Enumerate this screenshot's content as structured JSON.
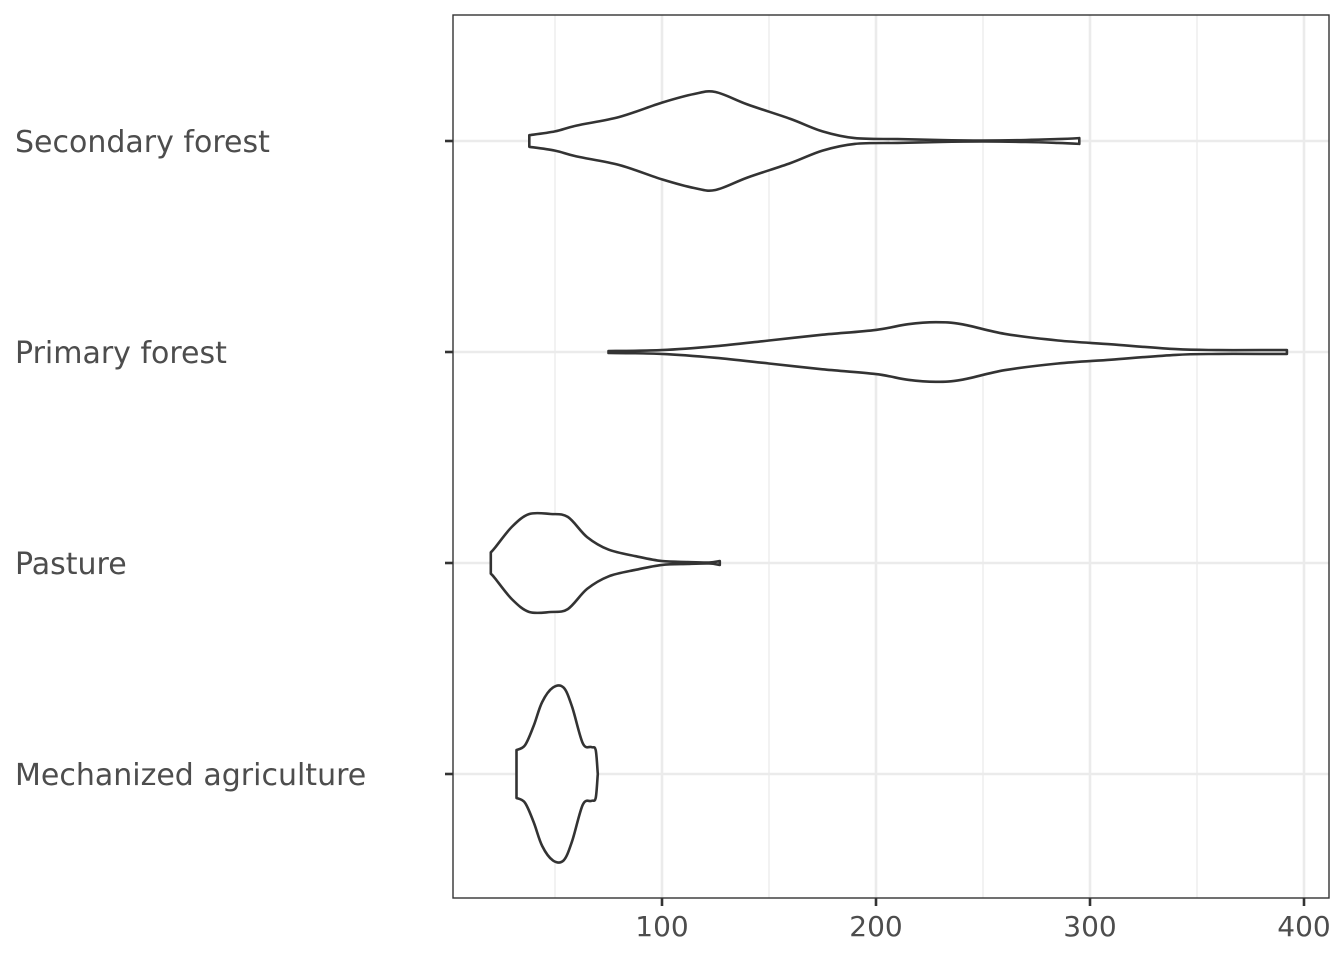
{
  "chart_data": {
    "type": "violin",
    "orientation": "horizontal",
    "title": "",
    "xlabel": "",
    "ylabel": "",
    "xlim": [
      2,
      408
    ],
    "x_ticks": [
      100,
      200,
      300,
      400
    ],
    "x_tick_labels": [
      "100",
      "200",
      "300",
      "400"
    ],
    "x_minor_ticks": [
      50,
      150,
      250,
      350
    ],
    "grid": true,
    "categories": [
      "Secondary forest",
      "Primary forest",
      "Pasture",
      "Mechanized agriculture"
    ],
    "series": [
      {
        "category": "Secondary forest",
        "density_profile": [
          [
            38,
            0.06
          ],
          [
            50,
            0.1
          ],
          [
            60,
            0.16
          ],
          [
            80,
            0.25
          ],
          [
            100,
            0.4
          ],
          [
            115,
            0.49
          ],
          [
            125,
            0.51
          ],
          [
            140,
            0.38
          ],
          [
            160,
            0.23
          ],
          [
            175,
            0.1
          ],
          [
            190,
            0.03
          ],
          [
            210,
            0.02
          ],
          [
            230,
            0.01
          ],
          [
            250,
            0.005
          ],
          [
            270,
            0.01
          ],
          [
            285,
            0.02
          ],
          [
            295,
            0.03
          ]
        ]
      },
      {
        "category": "Primary forest",
        "density_profile": [
          [
            75,
            0.01
          ],
          [
            100,
            0.02
          ],
          [
            125,
            0.06
          ],
          [
            150,
            0.12
          ],
          [
            175,
            0.18
          ],
          [
            200,
            0.23
          ],
          [
            215,
            0.29
          ],
          [
            228,
            0.31
          ],
          [
            240,
            0.29
          ],
          [
            260,
            0.19
          ],
          [
            285,
            0.12
          ],
          [
            310,
            0.08
          ],
          [
            340,
            0.03
          ],
          [
            360,
            0.02
          ],
          [
            380,
            0.02
          ],
          [
            392,
            0.02
          ]
        ]
      },
      {
        "category": "Pasture",
        "density_profile": [
          [
            20,
            0.11
          ],
          [
            22,
            0.16
          ],
          [
            30,
            0.38
          ],
          [
            38,
            0.51
          ],
          [
            48,
            0.51
          ],
          [
            56,
            0.48
          ],
          [
            65,
            0.27
          ],
          [
            75,
            0.14
          ],
          [
            88,
            0.07
          ],
          [
            100,
            0.02
          ],
          [
            112,
            0.01
          ],
          [
            122,
            0.005
          ],
          [
            127,
            0.02
          ]
        ]
      },
      {
        "category": "Mechanized agriculture",
        "density_profile": [
          [
            32,
            0.25
          ],
          [
            36,
            0.3
          ],
          [
            40,
            0.5
          ],
          [
            44,
            0.75
          ],
          [
            49,
            0.9
          ],
          [
            54,
            0.9
          ],
          [
            58,
            0.7
          ],
          [
            63,
            0.32
          ],
          [
            67,
            0.28
          ],
          [
            69,
            0.25
          ],
          [
            70,
            0.0
          ]
        ]
      }
    ]
  }
}
